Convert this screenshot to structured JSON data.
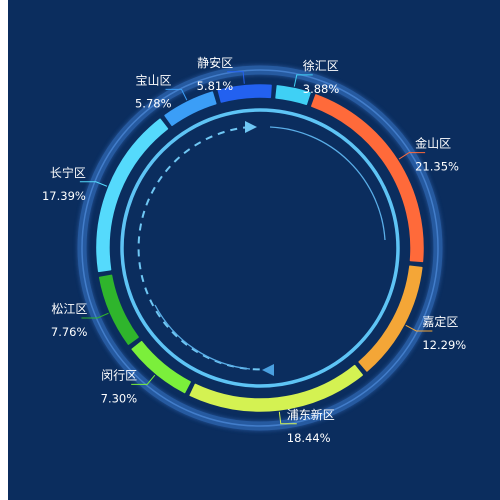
{
  "chart_data": {
    "type": "pie",
    "variant": "ring",
    "title": "",
    "unit": "%",
    "slices": [
      {
        "name": "徐汇区",
        "value": 3.88,
        "color": "#3fd0f5"
      },
      {
        "name": "金山区",
        "value": 21.35,
        "color": "#ff6a3a"
      },
      {
        "name": "嘉定区",
        "value": 12.29,
        "color": "#f4a637"
      },
      {
        "name": "浦东新区",
        "value": 18.44,
        "color": "#d4f252"
      },
      {
        "name": "闵行区",
        "value": 7.3,
        "color": "#7bef3b"
      },
      {
        "name": "松江区",
        "value": 7.76,
        "color": "#2fb52c"
      },
      {
        "name": "长宁区",
        "value": 17.39,
        "color": "#55dafc"
      },
      {
        "name": "宝山区",
        "value": 5.78,
        "color": "#3b9ef7"
      },
      {
        "name": "静安区",
        "value": 5.81,
        "color": "#2361f0"
      }
    ],
    "colors": {
      "background": "#0b2d5e",
      "outer_ring": "#2a5fa8",
      "inner_ring": "#5ec4f5",
      "dash_ring": "#6fc7f4",
      "label_line": "#9fd8ff",
      "text": "#ffffff"
    }
  }
}
